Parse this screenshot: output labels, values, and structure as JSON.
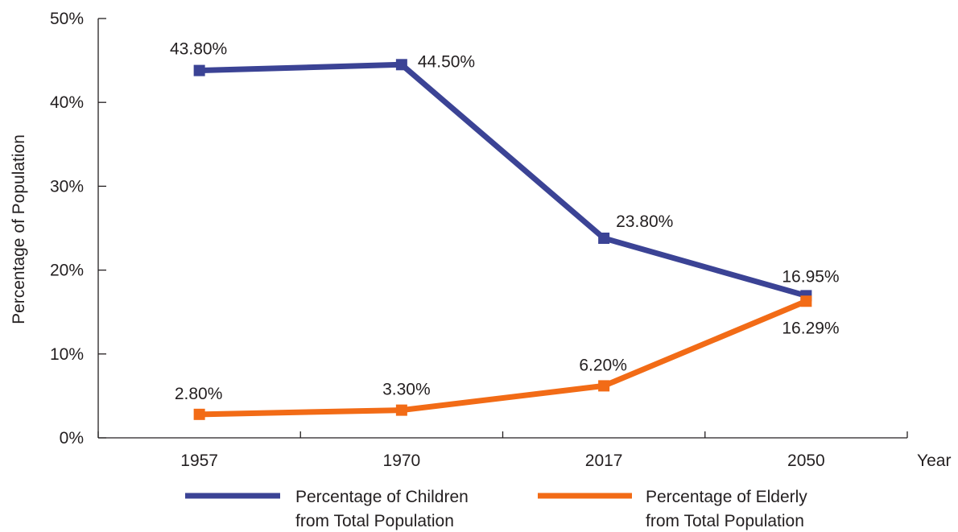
{
  "chart_data": {
    "type": "line",
    "title": "",
    "xlabel": "Year",
    "ylabel": "Percentage of Population",
    "categories": [
      "1957",
      "1970",
      "2017",
      "2050"
    ],
    "ylim": [
      0,
      50
    ],
    "yticks": [
      0,
      10,
      20,
      30,
      40,
      50
    ],
    "ytick_labels": [
      "0%",
      "10%",
      "20%",
      "30%",
      "40%",
      "50%"
    ],
    "grid": false,
    "legend_position": "bottom",
    "series": [
      {
        "name": "Percentage of Children from Total Population",
        "legend_lines": [
          "Percentage of Children",
          "from Total Population"
        ],
        "color": "#3b4395",
        "values": [
          43.8,
          44.5,
          23.8,
          16.95
        ],
        "labels": [
          "43.80%",
          "44.50%",
          "23.80%",
          "16.95%"
        ]
      },
      {
        "name": "Percentage of Elderly from Total Population",
        "legend_lines": [
          "Percentage of Elderly",
          "from Total Population"
        ],
        "color": "#f26b16",
        "values": [
          2.8,
          3.3,
          6.2,
          16.29
        ],
        "labels": [
          "2.80%",
          "3.30%",
          "6.20%",
          "16.29%"
        ]
      }
    ]
  }
}
